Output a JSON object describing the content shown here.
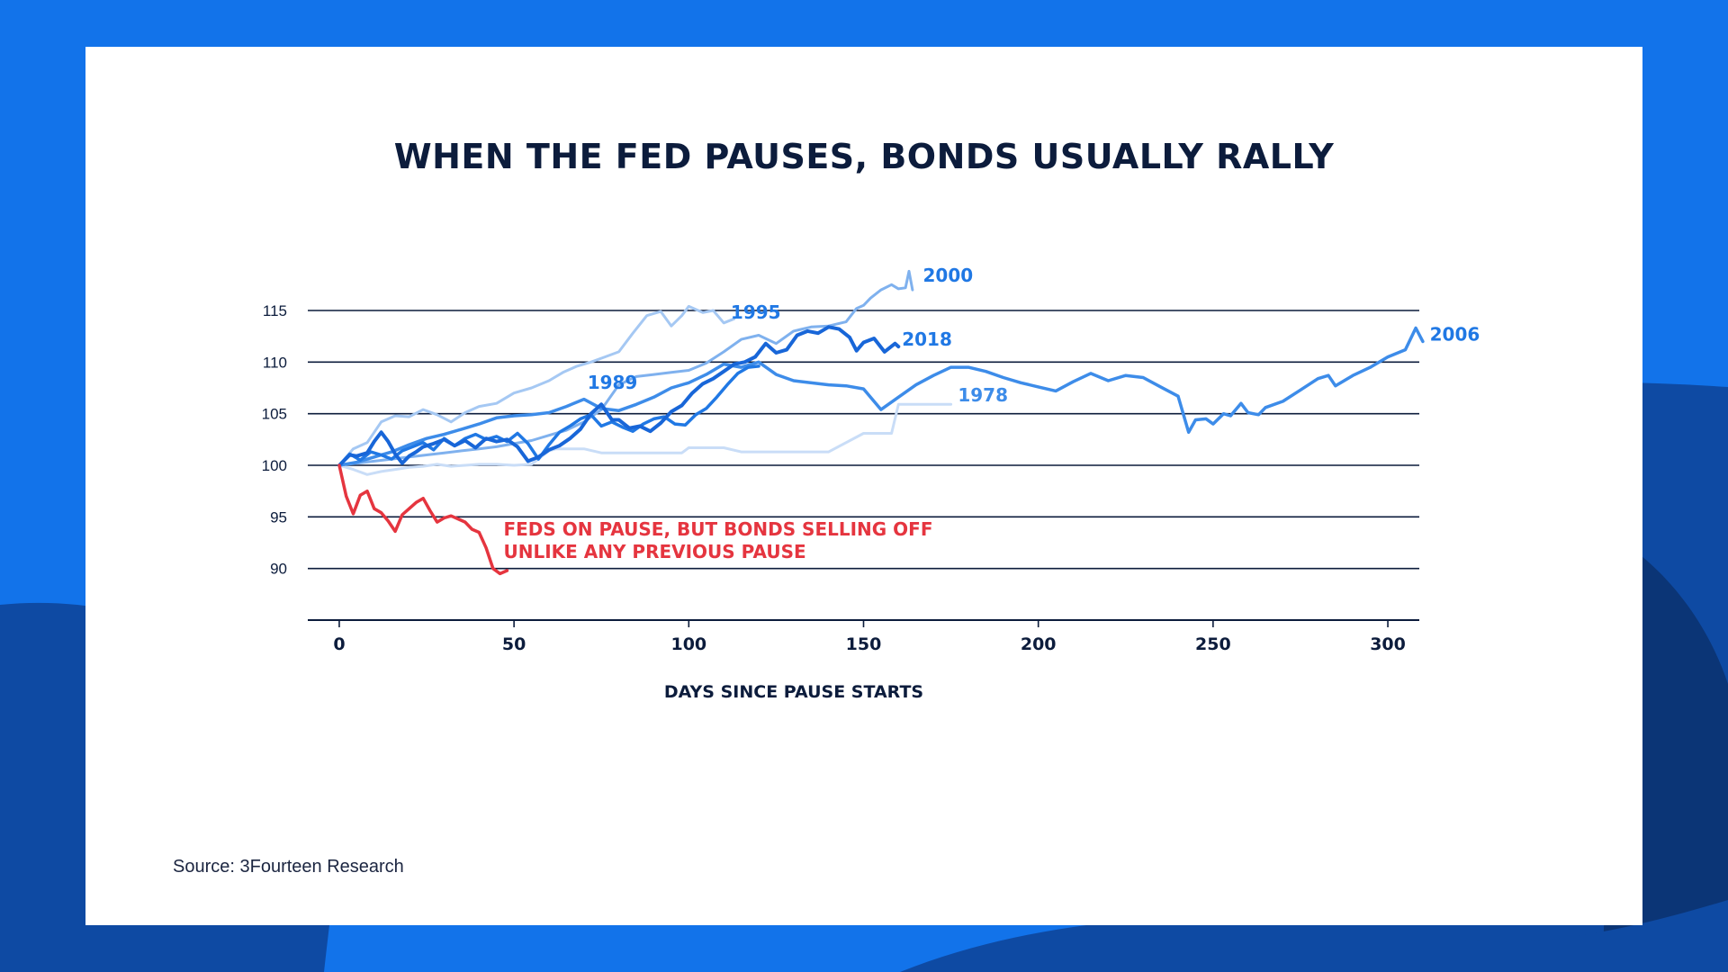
{
  "colors": {
    "background": "#1273ea",
    "wave_dark": "#0e4aa3",
    "wave_darkest": "#0b3576",
    "card": "#ffffff",
    "text": "#0c1c3c",
    "gridline": "#0c1c3c",
    "highlight": "#e5353f"
  },
  "title": "WHEN THE FED PAUSES, BONDS USUALLY RALLY",
  "source": "Source: 3Fourteen Research",
  "chart_data": {
    "type": "line",
    "title": "WHEN THE FED PAUSES, BONDS USUALLY RALLY",
    "xlabel": "DAYS SINCE PAUSE STARTS",
    "ylabel": "",
    "xlim": [
      -9,
      309
    ],
    "ylim": [
      85,
      115
    ],
    "x_ticks": [
      0,
      50,
      100,
      150,
      200,
      250,
      300
    ],
    "y_ticks": [
      90,
      95,
      100,
      105,
      110,
      115
    ],
    "grid": "horizontal",
    "legend": "direct labels at line ends",
    "series": [
      {
        "name": "1978",
        "color": "#c9ddf7",
        "width": 3,
        "x": [
          0,
          4,
          8,
          12,
          16,
          20,
          24,
          28,
          32,
          36,
          40,
          45,
          50,
          55,
          60,
          62,
          70,
          75,
          80,
          90,
          98,
          100,
          110,
          115,
          120,
          130,
          135,
          140,
          150,
          155,
          158,
          160,
          165,
          170,
          175
        ],
        "y": [
          100,
          99.6,
          99.1,
          99.4,
          99.6,
          99.8,
          99.9,
          100.1,
          99.9,
          100,
          100.1,
          100.1,
          100,
          100.1,
          101.4,
          101.6,
          101.6,
          101.2,
          101.2,
          101.2,
          101.2,
          101.7,
          101.7,
          101.3,
          101.3,
          101.3,
          101.3,
          101.3,
          103.1,
          103.1,
          103.1,
          105.9,
          105.9,
          105.9,
          105.9
        ]
      },
      {
        "name": "1995",
        "color": "#a5c8f3",
        "width": 3,
        "x": [
          0,
          4,
          8,
          12,
          16,
          20,
          24,
          28,
          32,
          36,
          40,
          45,
          50,
          55,
          60,
          64,
          68,
          72,
          76,
          80,
          84,
          88,
          92,
          95,
          98,
          100,
          104,
          107,
          110,
          113
        ],
        "y": [
          100,
          101.6,
          102.2,
          104.2,
          104.8,
          104.7,
          105.4,
          104.9,
          104.2,
          105.1,
          105.7,
          106.0,
          107.0,
          107.5,
          108.2,
          109.0,
          109.6,
          110.0,
          110.5,
          111.0,
          112.8,
          114.5,
          114.9,
          113.5,
          114.5,
          115.4,
          114.8,
          115.0,
          113.8,
          114.2
        ]
      },
      {
        "name": "2000",
        "color": "#7fb1ee",
        "width": 3,
        "x": [
          0,
          5,
          10,
          15,
          20,
          25,
          30,
          35,
          40,
          45,
          50,
          55,
          60,
          65,
          70,
          75,
          80,
          85,
          90,
          95,
          100,
          105,
          110,
          115,
          120,
          125,
          130,
          135,
          140,
          145,
          148,
          150,
          152,
          155,
          158,
          160,
          162,
          163,
          164
        ],
        "y": [
          100,
          100.2,
          100.4,
          100.6,
          100.8,
          101.0,
          101.2,
          101.4,
          101.6,
          101.8,
          102.1,
          102.4,
          102.9,
          103.4,
          104.2,
          105.4,
          107.8,
          108.6,
          108.8,
          109.0,
          109.2,
          109.9,
          111.0,
          112.2,
          112.6,
          111.8,
          113.0,
          113.4,
          113.5,
          113.9,
          115.2,
          115.5,
          116.2,
          117.0,
          117.5,
          117.1,
          117.2,
          118.8,
          117.0
        ]
      },
      {
        "name": "2006",
        "color": "#3d8ce9",
        "width": 3.5,
        "x": [
          0,
          5,
          10,
          15,
          20,
          25,
          30,
          35,
          40,
          45,
          50,
          55,
          60,
          65,
          70,
          75,
          80,
          85,
          90,
          95,
          100,
          105,
          110,
          115,
          120,
          125,
          130,
          140,
          145,
          150,
          155,
          160,
          165,
          170,
          175,
          180,
          185,
          190,
          195,
          200,
          205,
          210,
          215,
          220,
          225,
          230,
          235,
          240,
          243,
          245,
          248,
          250,
          253,
          255,
          258,
          260,
          263,
          265,
          270,
          275,
          280,
          283,
          285,
          290,
          295,
          300,
          305,
          308,
          310
        ],
        "y": [
          100,
          100.3,
          100.8,
          101.3,
          102.0,
          102.6,
          103.0,
          103.5,
          104.0,
          104.6,
          104.8,
          104.9,
          105.1,
          105.7,
          106.4,
          105.5,
          105.3,
          105.9,
          106.6,
          107.5,
          108.0,
          108.8,
          109.8,
          109.5,
          110.0,
          108.8,
          108.2,
          107.8,
          107.7,
          107.4,
          105.4,
          106.6,
          107.8,
          108.7,
          109.5,
          109.5,
          109.1,
          108.5,
          108.0,
          107.6,
          107.2,
          108.1,
          108.9,
          108.2,
          108.7,
          108.5,
          107.6,
          106.7,
          103.2,
          104.4,
          104.5,
          104.0,
          105.0,
          104.8,
          106.0,
          105.1,
          104.9,
          105.6,
          106.2,
          107.3,
          108.4,
          108.7,
          107.7,
          108.7,
          109.5,
          110.5,
          111.2,
          113.3,
          112.0
        ]
      },
      {
        "name": "1989",
        "color": "#2078e4",
        "width": 3.5,
        "x": [
          0,
          3,
          6,
          9,
          12,
          15,
          18,
          21,
          24,
          27,
          30,
          33,
          36,
          39,
          42,
          45,
          48,
          51,
          54,
          57,
          60,
          63,
          66,
          69,
          72,
          75,
          78,
          81,
          84,
          87,
          90,
          93,
          96,
          99,
          102,
          105,
          108,
          111,
          114,
          117,
          120
        ],
        "y": [
          100,
          101.1,
          100.5,
          101.3,
          101.0,
          100.6,
          101.4,
          101.8,
          102.2,
          101.5,
          102.6,
          101.9,
          102.6,
          103.0,
          102.5,
          102.8,
          102.3,
          103.1,
          102.1,
          100.6,
          102.0,
          103.2,
          103.8,
          104.5,
          104.9,
          103.8,
          104.2,
          103.7,
          103.3,
          104.0,
          104.5,
          104.7,
          104.0,
          103.9,
          104.9,
          105.5,
          106.6,
          107.8,
          108.9,
          109.5,
          109.6
        ]
      },
      {
        "name": "2018",
        "color": "#1866d8",
        "width": 4,
        "x": [
          0,
          3,
          5,
          8,
          10,
          12,
          14,
          16,
          18,
          20,
          22,
          24,
          27,
          30,
          33,
          36,
          39,
          42,
          45,
          48,
          51,
          54,
          57,
          60,
          63,
          66,
          69,
          72,
          75,
          78,
          80,
          83,
          86,
          89,
          92,
          95,
          98,
          101,
          104,
          107,
          110,
          113,
          116,
          119,
          122,
          125,
          128,
          131,
          134,
          137,
          140,
          143,
          146,
          148,
          150,
          153,
          156,
          159,
          160
        ],
        "y": [
          100,
          101.0,
          100.9,
          101.2,
          102.3,
          103.2,
          102.3,
          101.1,
          100.2,
          100.9,
          101.3,
          101.8,
          102.1,
          102.5,
          101.9,
          102.4,
          101.7,
          102.6,
          102.3,
          102.5,
          101.8,
          100.4,
          100.8,
          101.5,
          101.9,
          102.6,
          103.5,
          105.0,
          105.9,
          104.4,
          104.4,
          103.6,
          103.8,
          103.3,
          104.1,
          105.2,
          105.8,
          107.0,
          107.9,
          108.4,
          109.1,
          109.8,
          110.0,
          110.5,
          111.8,
          110.9,
          111.2,
          112.6,
          113.0,
          112.8,
          113.4,
          113.2,
          112.4,
          111.1,
          111.9,
          112.3,
          111.0,
          111.8,
          111.5
        ]
      },
      {
        "name": "FEDS ON PAUSE, BUT BONDS SELLING OFF UNLIKE ANY PREVIOUS PAUSE",
        "color": "#e5353f",
        "width": 3.5,
        "x": [
          0,
          2,
          4,
          6,
          8,
          10,
          12,
          14,
          16,
          18,
          20,
          22,
          24,
          26,
          28,
          30,
          32,
          34,
          36,
          38,
          40,
          42,
          44,
          46,
          48
        ],
        "y": [
          100,
          97.0,
          95.3,
          97.1,
          97.5,
          95.8,
          95.4,
          94.6,
          93.6,
          95.2,
          95.8,
          96.4,
          96.8,
          95.6,
          94.5,
          94.9,
          95.1,
          94.8,
          94.5,
          93.8,
          93.5,
          92.0,
          90.0,
          89.5,
          89.8
        ]
      }
    ],
    "annotations": [
      {
        "id": "label-1978",
        "text": "1978",
        "x": 177,
        "y": 106.2,
        "color": "#3d8ce9"
      },
      {
        "id": "label-1989",
        "text": "1989",
        "x": 71,
        "y": 107.4,
        "color": "#2078e4"
      },
      {
        "id": "label-1995",
        "text": "1995",
        "x": 112,
        "y": 114.2,
        "color": "#2078e4"
      },
      {
        "id": "label-2000",
        "text": "2000",
        "x": 167,
        "y": 117.8,
        "color": "#2078e4"
      },
      {
        "id": "label-2018",
        "text": "2018",
        "x": 161,
        "y": 111.6,
        "color": "#2078e4"
      },
      {
        "id": "label-2006",
        "text": "2006",
        "x": 312,
        "y": 112.1,
        "color": "#2078e4"
      },
      {
        "id": "highlight-line1",
        "text": "FEDS ON PAUSE, BUT BONDS SELLING OFF",
        "x": 47,
        "y": 93.2,
        "color": "#e5353f"
      },
      {
        "id": "highlight-line2",
        "text": "UNLIKE ANY PREVIOUS PAUSE",
        "x": 47,
        "y": 91.0,
        "color": "#e5353f"
      }
    ]
  }
}
